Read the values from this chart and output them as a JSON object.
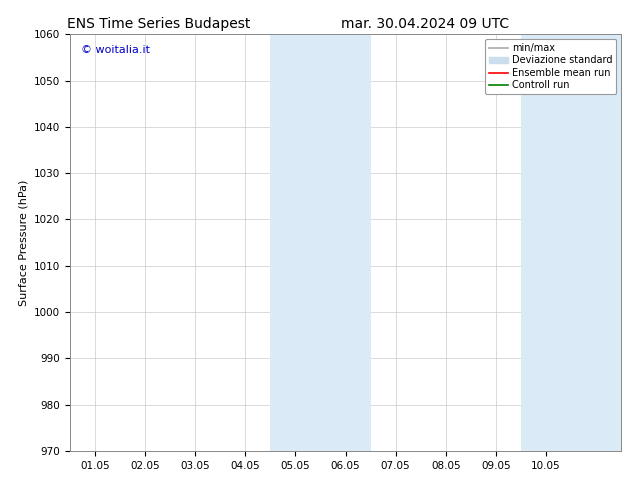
{
  "title_left": "ENS Time Series Budapest",
  "title_right": "mar. 30.04.2024 09 UTC",
  "ylabel": "Surface Pressure (hPa)",
  "ylim": [
    970,
    1060
  ],
  "yticks": [
    970,
    980,
    990,
    1000,
    1010,
    1020,
    1030,
    1040,
    1050,
    1060
  ],
  "xtick_labels": [
    "01.05",
    "02.05",
    "03.05",
    "04.05",
    "05.05",
    "06.05",
    "07.05",
    "08.05",
    "09.05",
    "10.05"
  ],
  "xtick_positions": [
    0,
    1,
    2,
    3,
    4,
    5,
    6,
    7,
    8,
    9
  ],
  "xlim": [
    -0.5,
    10.5
  ],
  "shaded_regions": [
    {
      "xmin": 3.5,
      "xmax": 5.5,
      "color": "#daeaf7"
    },
    {
      "xmin": 8.5,
      "xmax": 10.5,
      "color": "#daeaf7"
    }
  ],
  "legend_items": [
    {
      "label": "min/max",
      "color": "#aaaaaa",
      "lw": 1.2,
      "ls": "-",
      "type": "line"
    },
    {
      "label": "Deviazione standard",
      "color": "#ccdded",
      "lw": 8,
      "ls": "-",
      "type": "band"
    },
    {
      "label": "Ensemble mean run",
      "color": "red",
      "lw": 1.2,
      "ls": "-",
      "type": "line"
    },
    {
      "label": "Controll run",
      "color": "green",
      "lw": 1.2,
      "ls": "-",
      "type": "line"
    }
  ],
  "watermark_text": "© woitalia.it",
  "watermark_color": "#0000cc",
  "background_color": "#ffffff",
  "plot_bg_color": "#ffffff",
  "title_fontsize": 10,
  "label_fontsize": 8,
  "tick_fontsize": 7.5,
  "legend_fontsize": 7
}
